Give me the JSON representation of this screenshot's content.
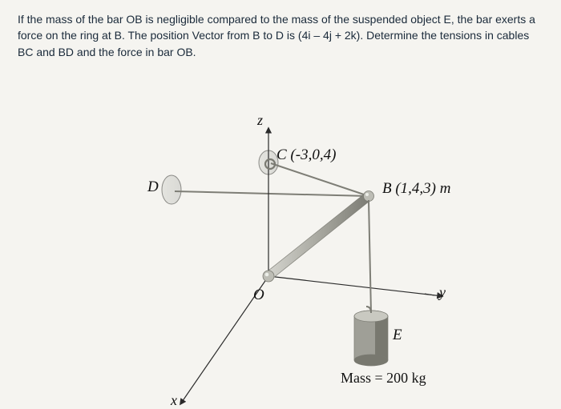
{
  "problem": {
    "line1": "If the mass of the bar OB is negligible compared to the mass of the suspended object E, the bar exerts a",
    "line2": "force on the ring at B. The position Vector from B to D is (4i – 4j + 2k). Determine the tensions in cables",
    "line3": "BC and BD and the force in bar OB."
  },
  "labels": {
    "z": "z",
    "y": "y",
    "x": "x",
    "D": "D",
    "O": "O",
    "E": "E",
    "C_full": "C (-3,0,4)",
    "B_full": "B (1,4,3) m",
    "mass": "Mass = 200 kg"
  },
  "geom": {
    "O": [
      335,
      260
    ],
    "Ztop": [
      335,
      75
    ],
    "C": [
      335,
      115
    ],
    "B": [
      460,
      160
    ],
    "D": [
      200,
      150
    ],
    "Yend": [
      552,
      285
    ],
    "Xend": [
      225,
      420
    ],
    "Etl": [
      442,
      310
    ],
    "Ewidth": 42,
    "Eheight": 55
  },
  "colors": {
    "bg": "#f5f4f0",
    "text": "#1a2a3a",
    "label": "#111111",
    "wall_fill": "#d9d9d5",
    "wall_stroke": "#8a8a86",
    "bar_light": "#d6d6d0",
    "bar_mid": "#a8a8a0",
    "bar_dark": "#7a7a72",
    "cable": "#7e7e76",
    "axis": "#2a2a2a",
    "ring": "#bdbdb5",
    "weight_face": "#9f9f97",
    "weight_side": "#78786f",
    "weight_top": "#c9c9c1"
  }
}
